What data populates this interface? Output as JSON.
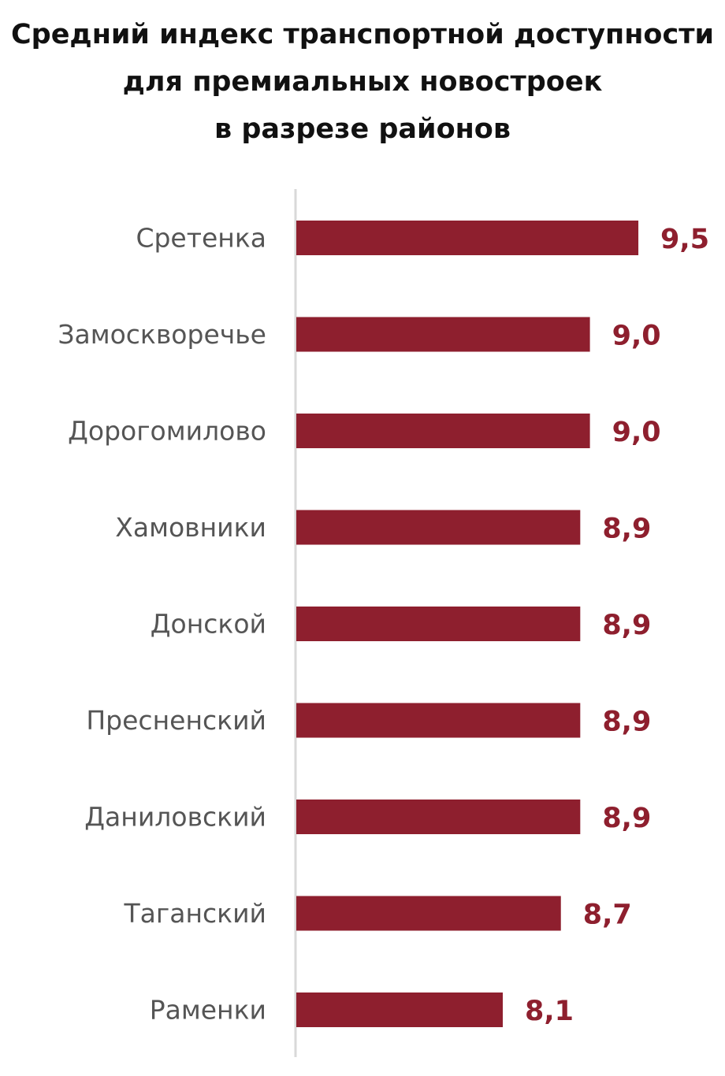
{
  "colors": {
    "bar": "#8e1f2e",
    "value_label": "#8e1f2e",
    "axis": "#d9d9d9"
  },
  "chart_data": {
    "type": "bar",
    "orientation": "horizontal",
    "title": "Средний индекс транспортной доступности для премиальных новостроек в разрезе районов",
    "title_lines": [
      "Средний индекс транспортной доступности",
      "для премиальных новостроек",
      "в разрезе районов"
    ],
    "categories": [
      "Сретенка",
      "Замоскворечье",
      "Дорогомилово",
      "Хамовники",
      "Донской",
      "Пресненский",
      "Даниловский",
      "Таганский",
      "Раменки"
    ],
    "values": [
      9.5,
      9.0,
      9.0,
      8.9,
      8.9,
      8.9,
      8.9,
      8.7,
      8.1
    ],
    "value_labels": [
      "9,5",
      "9,0",
      "9,0",
      "8,9",
      "8,9",
      "8,9",
      "8,9",
      "8,7",
      "8,1"
    ],
    "xlabel": "",
    "ylabel": "",
    "grid": false,
    "legend": "none"
  }
}
